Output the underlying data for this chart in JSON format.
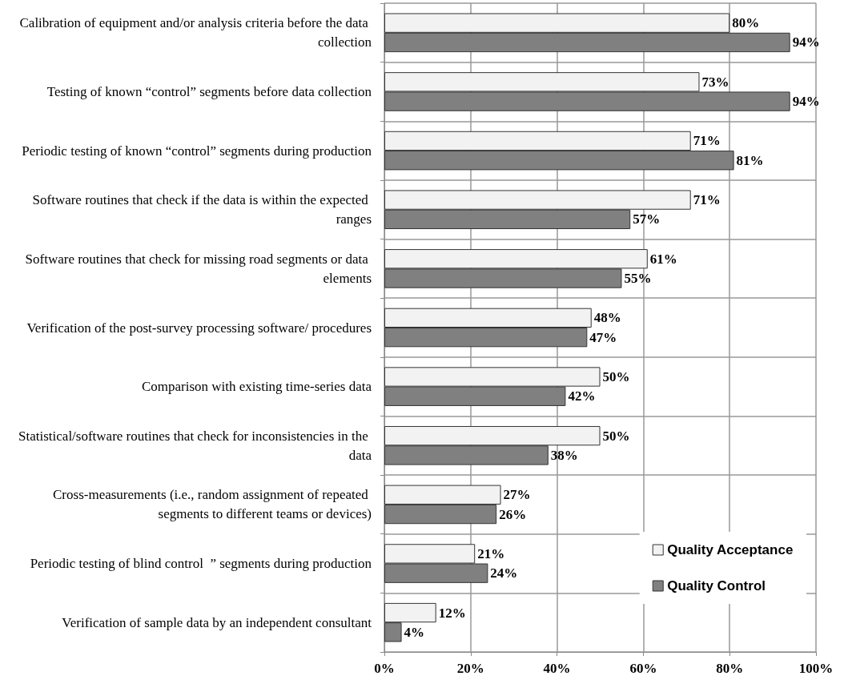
{
  "chart_data": {
    "type": "bar",
    "orientation": "horizontal",
    "categories": [
      "Calibration of equipment and/or analysis criteria before the data collection",
      "Testing of known “control” segments before data collection",
      "Periodic testing of known “control” segments during production",
      "Software routines that check if the data is within the expected ranges",
      "Software routines that check for missing road segments or data elements",
      "Verification of the post-survey processing software/ procedures",
      "Comparison with existing time-series data",
      "Statistical/software routines that check for inconsistencies in the data",
      "Cross-measurements (i.e., random assignment of repeated segments to different teams or devices)",
      "Periodic testing of blind control  ” segments during production",
      "Verification of sample data by an independent consultant"
    ],
    "series": [
      {
        "name": "Quality Acceptance",
        "color": "#f2f2f2",
        "values": [
          80,
          73,
          71,
          71,
          61,
          48,
          50,
          50,
          27,
          21,
          12
        ],
        "value_labels": [
          "80%",
          "73%",
          "71%",
          "71%",
          "61%",
          "48%",
          "50%",
          "50%",
          "27%",
          "21%",
          "12%"
        ]
      },
      {
        "name": "Quality Control",
        "color": "#808080",
        "values": [
          94,
          94,
          81,
          57,
          55,
          47,
          42,
          38,
          26,
          24,
          4
        ],
        "value_labels": [
          "94%",
          "94%",
          "81%",
          "57%",
          "55%",
          "47%",
          "42%",
          "38%",
          "26%",
          "24%",
          "4%"
        ]
      }
    ],
    "xlim": [
      0,
      100
    ],
    "xticks": [
      {
        "value": 0,
        "label": "0%"
      },
      {
        "value": 20,
        "label": "20%"
      },
      {
        "value": 40,
        "label": "40%"
      },
      {
        "value": 60,
        "label": "60%"
      },
      {
        "value": 80,
        "label": "80%"
      },
      {
        "value": 100,
        "label": "100%"
      }
    ],
    "grid": true,
    "legend": "bottom right"
  }
}
